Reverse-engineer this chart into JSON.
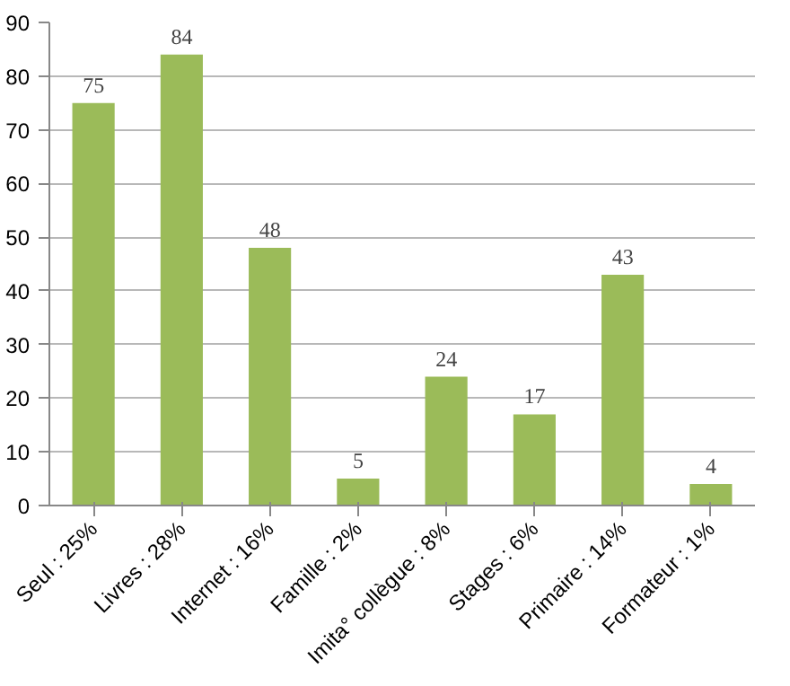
{
  "chart_data": {
    "type": "bar",
    "categories": [
      "Seul : 25%",
      "Livres : 28%",
      "Internet : 16%",
      "Famille : 2%",
      "Imita° collègue : 8%",
      "Stages : 6%",
      "Primaire : 14%",
      "Formateur : 1%"
    ],
    "values": [
      75,
      84,
      48,
      5,
      24,
      17,
      43,
      4
    ],
    "color": "#9bbb59",
    "ylim": [
      0,
      90
    ],
    "yticks": [
      0,
      10,
      20,
      30,
      40,
      50,
      60,
      70,
      80,
      90
    ],
    "grid": "y",
    "data_labels": true
  }
}
